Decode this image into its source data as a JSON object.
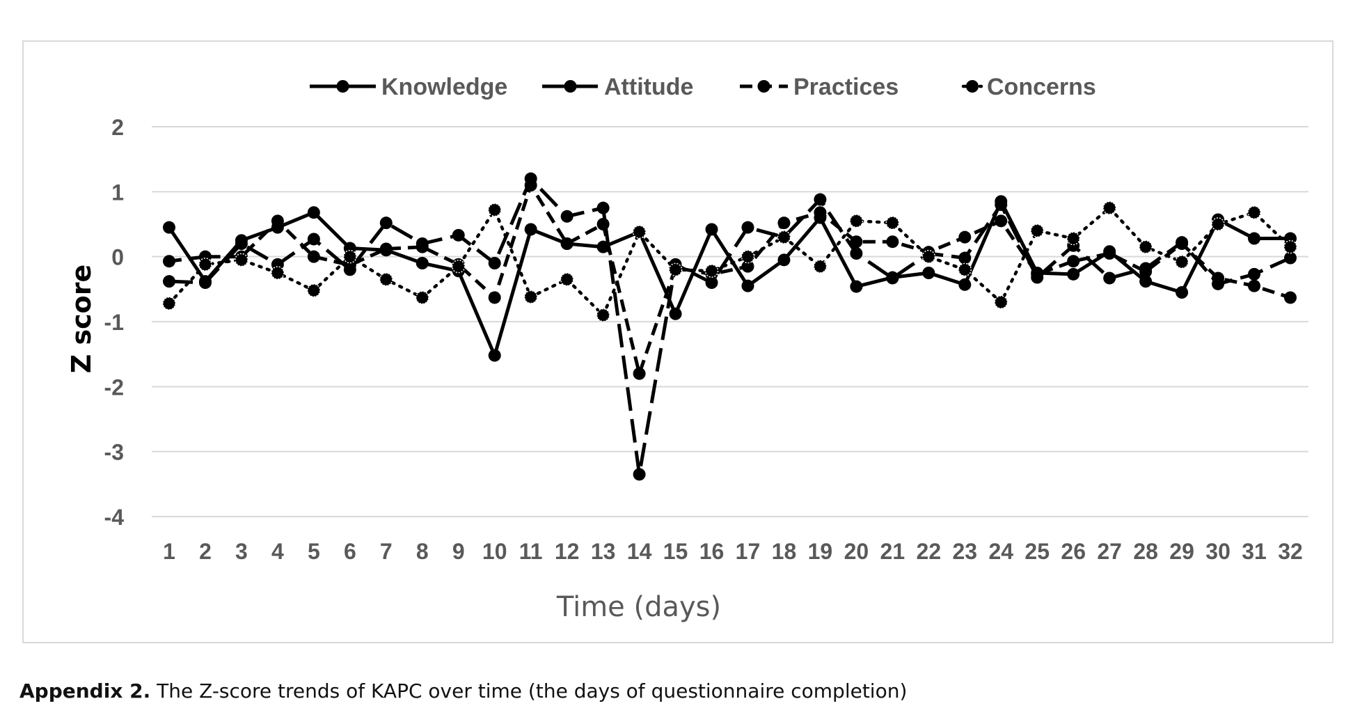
{
  "caption": {
    "label": "Appendix 2.",
    "text": " The Z-score trends of KAPC over time (the days of questionnaire completion)"
  },
  "chart_data": {
    "type": "line",
    "title": "",
    "xlabel": "Time (days)",
    "ylabel": "Z score",
    "ylim": [
      -4,
      2
    ],
    "yticks": [
      "2",
      "1",
      "0",
      "-1",
      "-2",
      "-3",
      "-4"
    ],
    "grid": true,
    "legend_position": "top-center",
    "categories": [
      "1",
      "2",
      "3",
      "4",
      "5",
      "6",
      "7",
      "8",
      "9",
      "10",
      "11",
      "12",
      "13",
      "14",
      "15",
      "16",
      "17",
      "18",
      "19",
      "20",
      "21",
      "22",
      "23",
      "24",
      "25",
      "26",
      "27",
      "28",
      "29",
      "30",
      "31",
      "32"
    ],
    "series": [
      {
        "name": "Knowledge",
        "style": "solid",
        "values": [
          0.45,
          -0.38,
          0.25,
          0.45,
          0.68,
          0.13,
          0.1,
          -0.1,
          -0.22,
          -1.52,
          0.42,
          0.2,
          0.15,
          0.38,
          -0.88,
          0.42,
          -0.45,
          -0.05,
          0.6,
          -0.46,
          -0.32,
          -0.25,
          -0.43,
          0.85,
          -0.25,
          -0.27,
          0.08,
          -0.38,
          -0.55,
          0.57,
          0.28,
          0.28
        ]
      },
      {
        "name": "Attitude",
        "style": "long-dash",
        "values": [
          -0.38,
          -0.4,
          0.2,
          -0.12,
          0.27,
          -0.2,
          0.52,
          0.2,
          0.33,
          -0.1,
          1.2,
          0.62,
          0.75,
          -3.35,
          -0.12,
          -0.4,
          0.45,
          0.3,
          0.88,
          0.05,
          -0.33,
          0.05,
          -0.02,
          0.8,
          -0.32,
          0.17,
          -0.33,
          -0.18,
          0.22,
          -0.42,
          -0.27,
          -0.02
        ]
      },
      {
        "name": "Practices",
        "style": "dash",
        "values": [
          -0.07,
          0.0,
          0.0,
          0.55,
          0.0,
          -0.13,
          0.12,
          0.15,
          -0.12,
          -0.63,
          1.1,
          0.2,
          0.5,
          -1.8,
          -0.17,
          -0.27,
          -0.15,
          0.52,
          0.68,
          0.23,
          0.23,
          0.07,
          0.3,
          0.55,
          -0.27,
          -0.07,
          0.05,
          -0.23,
          0.2,
          -0.33,
          -0.45,
          -0.63
        ]
      },
      {
        "name": "Concerns",
        "style": "dot",
        "values": [
          -0.72,
          -0.12,
          -0.05,
          -0.25,
          -0.52,
          0.0,
          -0.35,
          -0.63,
          -0.15,
          0.72,
          -0.62,
          -0.35,
          -0.9,
          0.38,
          -0.2,
          -0.22,
          0.0,
          0.3,
          -0.15,
          0.55,
          0.52,
          0.0,
          -0.2,
          -0.7,
          0.4,
          0.28,
          0.75,
          0.15,
          -0.08,
          0.5,
          0.68,
          0.15
        ]
      }
    ]
  }
}
